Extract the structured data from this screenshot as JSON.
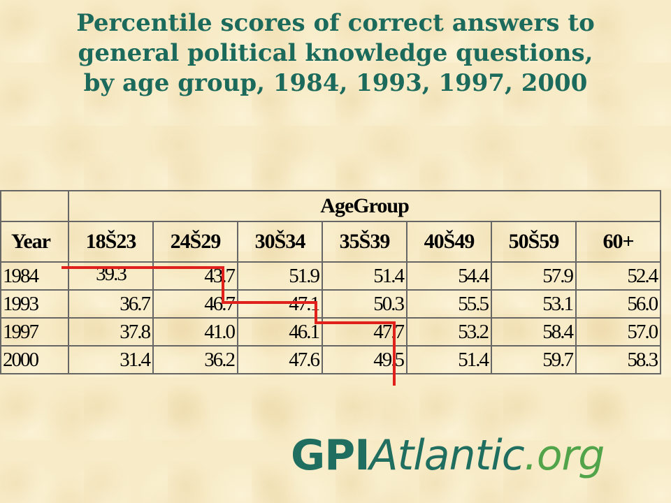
{
  "title": {
    "line1": "Percentile scores of correct answers to",
    "line2": "general political knowledge questions,",
    "line3": "by age group, 1984, 1993, 1997, 2000"
  },
  "table": {
    "group_header": "AgeGroup",
    "year_header": "Year",
    "columns": [
      "18Š23",
      "24Š29",
      "30Š34",
      "35Š39",
      "40Š49",
      "50Š59",
      "60+"
    ],
    "rows": [
      {
        "year": "1984",
        "values": [
          "39.3",
          "43.7",
          "51.9",
          "51.4",
          "54.4",
          "57.9",
          "52.4"
        ]
      },
      {
        "year": "1993",
        "values": [
          "36.7",
          "46.7",
          "47.1",
          "50.3",
          "55.5",
          "53.1",
          "56.0"
        ]
      },
      {
        "year": "1997",
        "values": [
          "37.8",
          "41.0",
          "46.1",
          "47.7",
          "53.2",
          "58.4",
          "57.0"
        ]
      },
      {
        "year": "2000",
        "values": [
          "31.4",
          "36.2",
          "47.6",
          "49.5",
          "51.4",
          "59.7",
          "58.3"
        ]
      }
    ]
  },
  "logo": {
    "gpi": "GPI",
    "atlantic": "Atlantic",
    "org": ".org"
  },
  "colors": {
    "title": "#1b6a5c",
    "stair_line": "#e0201a",
    "logo_dark": "#1f6e60",
    "logo_light": "#52a44a",
    "background": "#f8ecc8"
  }
}
